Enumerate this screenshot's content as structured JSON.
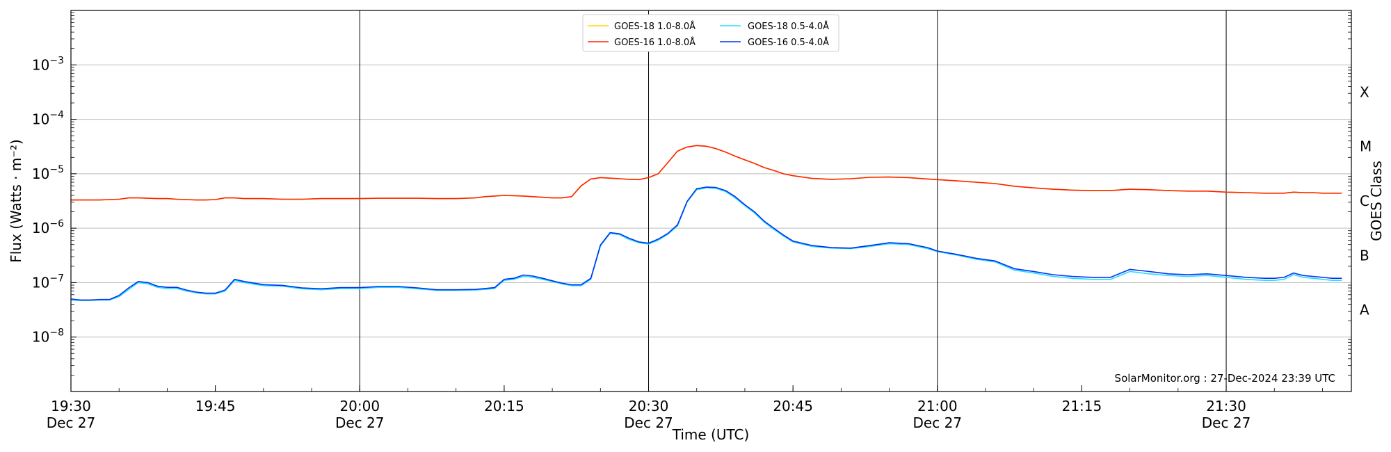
{
  "chart_data": {
    "type": "line",
    "xlabel": "Time (UTC)",
    "ylabel": "Flux (Watts · m⁻²)",
    "y2label": "GOES Class",
    "yscale": "log",
    "ylim": [
      1e-09,
      0.01
    ],
    "xlim": [
      "19:30",
      "21:43"
    ],
    "grid": "horizontal at decades; vertical black lines every 30 min",
    "legend_position": "top-center",
    "credit": "SolarMonitor.org : 27-Dec-2024 23:39 UTC",
    "y_ticks": [
      {
        "value": 1e-08,
        "base": "10",
        "exp": "−8"
      },
      {
        "value": 1e-07,
        "base": "10",
        "exp": "−7"
      },
      {
        "value": 1e-06,
        "base": "10",
        "exp": "−6"
      },
      {
        "value": 1e-05,
        "base": "10",
        "exp": "−5"
      },
      {
        "value": 0.0001,
        "base": "10",
        "exp": "−4"
      },
      {
        "value": 0.001,
        "base": "10",
        "exp": "−3"
      }
    ],
    "x_ticks": [
      {
        "time": "19:30",
        "label": "19:30",
        "sublabel": "Dec 27"
      },
      {
        "time": "19:45",
        "label": "19:45",
        "sublabel": ""
      },
      {
        "time": "20:00",
        "label": "20:00",
        "sublabel": "Dec 27"
      },
      {
        "time": "20:15",
        "label": "20:15",
        "sublabel": ""
      },
      {
        "time": "20:30",
        "label": "20:30",
        "sublabel": "Dec 27"
      },
      {
        "time": "20:45",
        "label": "20:45",
        "sublabel": ""
      },
      {
        "time": "21:00",
        "label": "21:00",
        "sublabel": "Dec 27"
      },
      {
        "time": "21:15",
        "label": "21:15",
        "sublabel": ""
      },
      {
        "time": "21:30",
        "label": "21:30",
        "sublabel": "Dec 27"
      }
    ],
    "goes_classes": [
      {
        "label": "A",
        "value": 3.16e-08
      },
      {
        "label": "B",
        "value": 3.16e-07
      },
      {
        "label": "C",
        "value": 3.16e-06
      },
      {
        "label": "M",
        "value": 3.16e-05
      },
      {
        "label": "X",
        "value": 0.000316
      }
    ],
    "x": [
      "19:30",
      "19:31",
      "19:32",
      "19:33",
      "19:34",
      "19:35",
      "19:36",
      "19:37",
      "19:38",
      "19:39",
      "19:40",
      "19:41",
      "19:42",
      "19:43",
      "19:44",
      "19:45",
      "19:46",
      "19:47",
      "19:48",
      "19:50",
      "19:52",
      "19:54",
      "19:56",
      "19:58",
      "20:00",
      "20:02",
      "20:04",
      "20:06",
      "20:08",
      "20:10",
      "20:12",
      "20:13",
      "20:14",
      "20:15",
      "20:16",
      "20:17",
      "20:18",
      "20:19",
      "20:20",
      "20:21",
      "20:22",
      "20:23",
      "20:24",
      "20:25",
      "20:26",
      "20:27",
      "20:28",
      "20:29",
      "20:30",
      "20:31",
      "20:32",
      "20:33",
      "20:34",
      "20:35",
      "20:36",
      "20:37",
      "20:38",
      "20:39",
      "20:40",
      "20:41",
      "20:42",
      "20:43",
      "20:44",
      "20:45",
      "20:47",
      "20:49",
      "20:51",
      "20:53",
      "20:55",
      "20:57",
      "20:59",
      "21:00",
      "21:02",
      "21:04",
      "21:06",
      "21:08",
      "21:10",
      "21:12",
      "21:14",
      "21:16",
      "21:18",
      "21:20",
      "21:22",
      "21:24",
      "21:26",
      "21:28",
      "21:30",
      "21:32",
      "21:34",
      "21:35",
      "21:36",
      "21:37",
      "21:38",
      "21:39",
      "21:40",
      "21:41",
      "21:42"
    ],
    "series": [
      {
        "name": "GOES-18 1.0-8.0Å",
        "color": "#ffd700",
        "values": [
          3.3e-06,
          3.3e-06,
          3.3e-06,
          3.3e-06,
          3.35e-06,
          3.4e-06,
          3.6e-06,
          3.6e-06,
          3.55e-06,
          3.5e-06,
          3.5e-06,
          3.4e-06,
          3.35e-06,
          3.3e-06,
          3.3e-06,
          3.35e-06,
          3.6e-06,
          3.6e-06,
          3.5e-06,
          3.5e-06,
          3.4e-06,
          3.4e-06,
          3.5e-06,
          3.5e-06,
          3.5e-06,
          3.55e-06,
          3.55e-06,
          3.55e-06,
          3.5e-06,
          3.5e-06,
          3.6e-06,
          3.8e-06,
          3.9e-06,
          4e-06,
          3.95e-06,
          3.9e-06,
          3.8e-06,
          3.7e-06,
          3.6e-06,
          3.6e-06,
          3.8e-06,
          6e-06,
          8e-06,
          8.5e-06,
          8.3e-06,
          8.1e-06,
          7.9e-06,
          7.8e-06,
          8.5e-06,
          1e-05,
          1.6e-05,
          2.6e-05,
          3.1e-05,
          3.3e-05,
          3.2e-05,
          2.9e-05,
          2.5e-05,
          2.1e-05,
          1.8e-05,
          1.55e-05,
          1.3e-05,
          1.15e-05,
          1e-05,
          9.2e-06,
          8.2e-06,
          7.9e-06,
          8.1e-06,
          8.6e-06,
          8.7e-06,
          8.5e-06,
          8e-06,
          7.8e-06,
          7.4e-06,
          7e-06,
          6.6e-06,
          5.9e-06,
          5.5e-06,
          5.2e-06,
          5e-06,
          4.9e-06,
          4.9e-06,
          5.2e-06,
          5.1e-06,
          4.9e-06,
          4.8e-06,
          4.8e-06,
          4.6e-06,
          4.5e-06,
          4.4e-06,
          4.4e-06,
          4.4e-06,
          4.6e-06,
          4.5e-06,
          4.5e-06,
          4.4e-06,
          4.4e-06,
          4.4e-06
        ]
      },
      {
        "name": "GOES-16 1.0-8.0Å",
        "color": "#ff2200",
        "values": [
          3.3e-06,
          3.3e-06,
          3.3e-06,
          3.3e-06,
          3.35e-06,
          3.4e-06,
          3.6e-06,
          3.6e-06,
          3.55e-06,
          3.5e-06,
          3.5e-06,
          3.4e-06,
          3.35e-06,
          3.3e-06,
          3.3e-06,
          3.35e-06,
          3.6e-06,
          3.6e-06,
          3.5e-06,
          3.5e-06,
          3.4e-06,
          3.4e-06,
          3.5e-06,
          3.5e-06,
          3.5e-06,
          3.55e-06,
          3.55e-06,
          3.55e-06,
          3.5e-06,
          3.5e-06,
          3.6e-06,
          3.8e-06,
          3.9e-06,
          4e-06,
          3.95e-06,
          3.9e-06,
          3.8e-06,
          3.7e-06,
          3.6e-06,
          3.6e-06,
          3.8e-06,
          6e-06,
          8e-06,
          8.5e-06,
          8.3e-06,
          8.1e-06,
          7.9e-06,
          7.8e-06,
          8.5e-06,
          1e-05,
          1.6e-05,
          2.6e-05,
          3.1e-05,
          3.3e-05,
          3.2e-05,
          2.9e-05,
          2.5e-05,
          2.1e-05,
          1.8e-05,
          1.55e-05,
          1.3e-05,
          1.15e-05,
          1e-05,
          9.2e-06,
          8.2e-06,
          7.9e-06,
          8.1e-06,
          8.6e-06,
          8.7e-06,
          8.5e-06,
          8e-06,
          7.8e-06,
          7.4e-06,
          7e-06,
          6.6e-06,
          5.9e-06,
          5.5e-06,
          5.2e-06,
          5e-06,
          4.9e-06,
          4.9e-06,
          5.2e-06,
          5.1e-06,
          4.9e-06,
          4.8e-06,
          4.8e-06,
          4.6e-06,
          4.5e-06,
          4.4e-06,
          4.4e-06,
          4.4e-06,
          4.6e-06,
          4.5e-06,
          4.5e-06,
          4.4e-06,
          4.4e-06,
          4.4e-06
        ]
      },
      {
        "name": "GOES-18 0.5-4.0Å",
        "color": "#22ddff",
        "values": [
          4.8e-08,
          4.7e-08,
          4.7e-08,
          4.8e-08,
          4.8e-08,
          5.5e-08,
          7.5e-08,
          1e-07,
          9.5e-08,
          8.2e-08,
          7.8e-08,
          7.8e-08,
          7e-08,
          6.5e-08,
          6.2e-08,
          6.2e-08,
          7e-08,
          1.1e-07,
          1e-07,
          8.8e-08,
          8.6e-08,
          7.7e-08,
          7.4e-08,
          7.8e-08,
          7.8e-08,
          8.2e-08,
          8.2e-08,
          7.7e-08,
          7.2e-08,
          7.2e-08,
          7.3e-08,
          7.5e-08,
          7.8e-08,
          1.1e-07,
          1.15e-07,
          1.3e-07,
          1.25e-07,
          1.15e-07,
          1.05e-07,
          9.5e-08,
          8.8e-08,
          8.8e-08,
          1.15e-07,
          4.7e-07,
          8e-07,
          7.6e-07,
          6.2e-07,
          5.4e-07,
          5.1e-07,
          6e-07,
          7.7e-07,
          1.1e-06,
          3e-06,
          5.1e-06,
          5.5e-06,
          5.4e-06,
          4.7e-06,
          3.6e-06,
          2.6e-06,
          1.9e-06,
          1.3e-06,
          9.5e-07,
          7.2e-07,
          5.6e-07,
          4.6e-07,
          4.3e-07,
          4.2e-07,
          4.6e-07,
          5.2e-07,
          5e-07,
          4.2e-07,
          3.7e-07,
          3.2e-07,
          2.7e-07,
          2.4e-07,
          1.7e-07,
          1.5e-07,
          1.3e-07,
          1.2e-07,
          1.15e-07,
          1.15e-07,
          1.6e-07,
          1.45e-07,
          1.35e-07,
          1.3e-07,
          1.35e-07,
          1.25e-07,
          1.15e-07,
          1.1e-07,
          1.1e-07,
          1.15e-07,
          1.4e-07,
          1.25e-07,
          1.2e-07,
          1.15e-07,
          1.1e-07,
          1.1e-07
        ]
      },
      {
        "name": "GOES-16 0.5-4.0Å",
        "color": "#0033ee",
        "values": [
          5e-08,
          4.8e-08,
          4.8e-08,
          4.9e-08,
          4.9e-08,
          5.8e-08,
          8e-08,
          1.05e-07,
          1e-07,
          8.6e-08,
          8.2e-08,
          8.2e-08,
          7.3e-08,
          6.7e-08,
          6.4e-08,
          6.4e-08,
          7.3e-08,
          1.15e-07,
          1.05e-07,
          9.2e-08,
          8.9e-08,
          8e-08,
          7.7e-08,
          8.1e-08,
          8.1e-08,
          8.5e-08,
          8.5e-08,
          8e-08,
          7.4e-08,
          7.4e-08,
          7.5e-08,
          7.8e-08,
          8.1e-08,
          1.15e-07,
          1.2e-07,
          1.38e-07,
          1.32e-07,
          1.2e-07,
          1.08e-07,
          9.8e-08,
          9.1e-08,
          9.1e-08,
          1.2e-07,
          4.9e-07,
          8.3e-07,
          7.9e-07,
          6.5e-07,
          5.6e-07,
          5.3e-07,
          6.3e-07,
          8e-07,
          1.15e-06,
          3.1e-06,
          5.3e-06,
          5.7e-06,
          5.6e-06,
          4.9e-06,
          3.8e-06,
          2.7e-06,
          2e-06,
          1.35e-06,
          1e-06,
          7.5e-07,
          5.8e-07,
          4.8e-07,
          4.4e-07,
          4.3e-07,
          4.8e-07,
          5.4e-07,
          5.2e-07,
          4.4e-07,
          3.8e-07,
          3.3e-07,
          2.8e-07,
          2.5e-07,
          1.8e-07,
          1.6e-07,
          1.4e-07,
          1.3e-07,
          1.25e-07,
          1.25e-07,
          1.75e-07,
          1.6e-07,
          1.45e-07,
          1.4e-07,
          1.45e-07,
          1.35e-07,
          1.25e-07,
          1.2e-07,
          1.2e-07,
          1.25e-07,
          1.5e-07,
          1.35e-07,
          1.3e-07,
          1.25e-07,
          1.2e-07,
          1.2e-07
        ]
      }
    ]
  }
}
